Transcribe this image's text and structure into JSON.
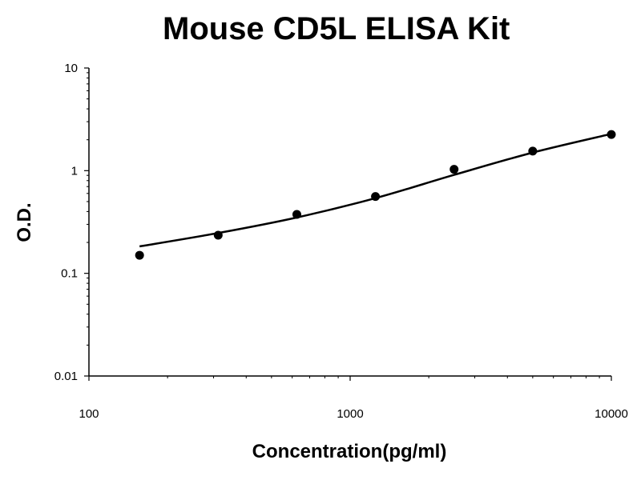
{
  "chart_data": {
    "type": "scatter",
    "title": "Mouse CD5L ELISA Kit",
    "xlabel": "Concentration(pg/ml)",
    "ylabel": "O.D.",
    "xscale": "log",
    "yscale": "log",
    "xlim": [
      100,
      10000
    ],
    "ylim": [
      0.01,
      10
    ],
    "xticks": [
      "100",
      "1000",
      "10000"
    ],
    "yticks": [
      "10",
      "1",
      "0.1",
      "0.01"
    ],
    "grid": false,
    "legend": "none",
    "series": [
      {
        "marker": "filled-circle",
        "color": "#000000",
        "x": [
          156.25,
          312.5,
          625,
          1250,
          2500,
          5000,
          10000
        ],
        "y": [
          0.15,
          0.235,
          0.375,
          0.56,
          1.03,
          1.55,
          2.25
        ]
      }
    ],
    "fit_curve": {
      "color": "#000000",
      "x": [
        156.25,
        312.5,
        625,
        1250,
        2500,
        5000,
        10000
      ],
      "y": [
        0.183,
        0.247,
        0.35,
        0.54,
        0.91,
        1.5,
        2.28
      ]
    }
  }
}
